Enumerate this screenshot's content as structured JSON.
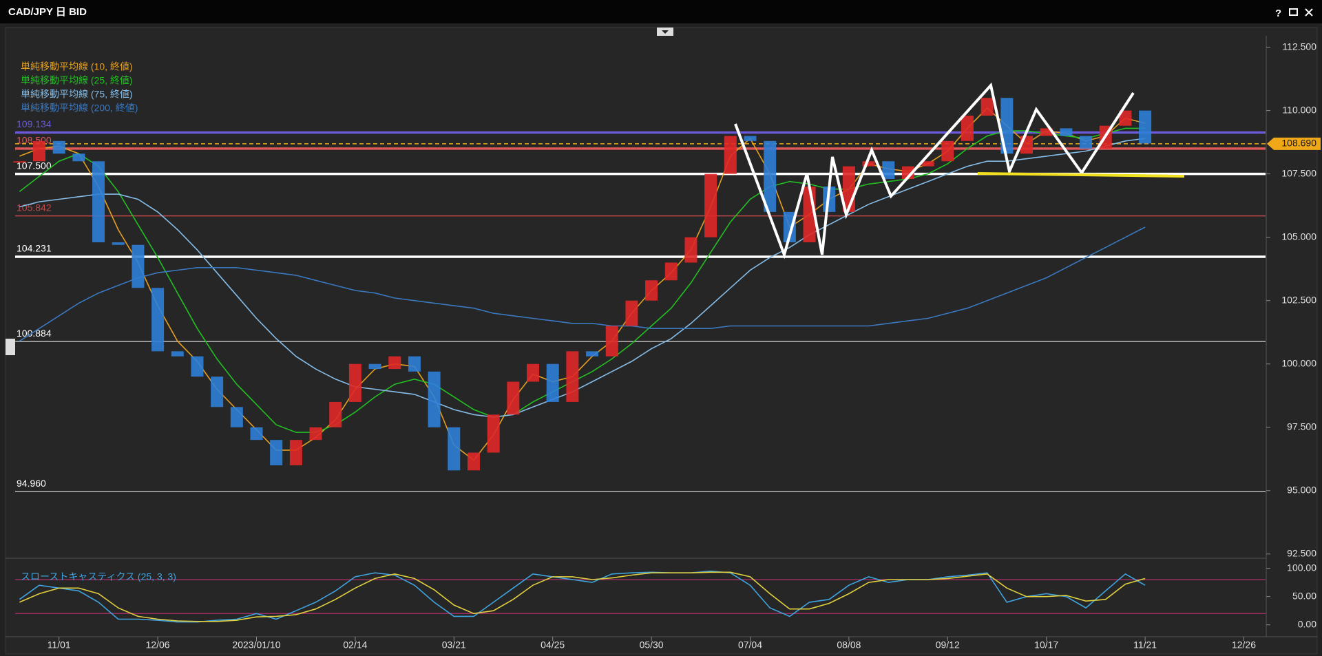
{
  "window": {
    "title": "CAD/JPY 日 BID"
  },
  "chart_data": [
    {
      "type": "candlestick",
      "categories": [
        null,
        null,
        "11/01",
        null,
        null,
        null,
        null,
        "12/06",
        null,
        null,
        null,
        null,
        "2023/01/10",
        null,
        null,
        null,
        null,
        "02/14",
        null,
        null,
        null,
        null,
        "03/21",
        null,
        null,
        null,
        null,
        "04/25",
        null,
        null,
        null,
        null,
        "05/30",
        null,
        null,
        null,
        null,
        "07/04",
        null,
        null,
        null,
        null,
        "08/08",
        null,
        null,
        null,
        null,
        "09/12",
        null,
        null,
        null,
        null,
        "10/17",
        null,
        null,
        null,
        null,
        "11/21",
        null,
        null,
        null,
        null,
        "12/26"
      ],
      "values": [
        108.0,
        108.8,
        108.3,
        108.0,
        104.8,
        104.7,
        103.0,
        100.5,
        100.3,
        99.5,
        98.3,
        97.5,
        97.0,
        96.0,
        97.0,
        97.5,
        98.5,
        100.0,
        99.8,
        100.3,
        99.7,
        97.5,
        95.8,
        96.5,
        98.0,
        99.3,
        100.0,
        98.5,
        100.5,
        100.3,
        101.5,
        102.5,
        103.3,
        104.0,
        105.0,
        107.5,
        109.0,
        108.8,
        106.0,
        104.8,
        107.0,
        106.0,
        107.8,
        108.0,
        107.3,
        107.8,
        108.0,
        108.8,
        109.8,
        110.5,
        108.3,
        109.0,
        109.3,
        109.0,
        108.5,
        109.4,
        110.0,
        108.7,
        null,
        null,
        null,
        null,
        null
      ],
      "up_color": "#e02828",
      "down_color": "#2f7fd8",
      "series": [
        {
          "name": "単純移動平均線 (10, 終値)",
          "color": "#e6a020",
          "values": [
            108.2,
            108.5,
            108.6,
            108.3,
            107.0,
            105.3,
            104.0,
            102.3,
            100.9,
            100.1,
            99.0,
            98.2,
            97.4,
            96.6,
            96.6,
            97.1,
            97.8,
            99.0,
            99.8,
            100.0,
            99.9,
            98.7,
            96.8,
            96.2,
            97.2,
            98.6,
            99.6,
            99.3,
            99.5,
            100.3,
            100.9,
            102.0,
            102.9,
            103.6,
            104.5,
            106.2,
            108.2,
            108.9,
            107.5,
            105.4,
            105.9,
            106.5,
            106.9,
            107.9,
            107.7,
            107.6,
            107.9,
            108.4,
            109.3,
            110.1,
            109.4,
            108.7,
            109.2,
            109.1,
            108.8,
            109.0,
            109.7,
            109.5,
            null,
            null,
            null,
            null,
            null
          ]
        },
        {
          "name": "単純移動平均線 (25, 終値)",
          "color": "#22c022",
          "values": [
            106.8,
            107.4,
            108.0,
            108.3,
            107.8,
            106.8,
            105.5,
            104.2,
            102.8,
            101.4,
            100.2,
            99.2,
            98.4,
            97.6,
            97.3,
            97.3,
            97.6,
            98.1,
            98.7,
            99.2,
            99.4,
            99.2,
            98.7,
            98.2,
            97.9,
            98.0,
            98.5,
            98.9,
            99.3,
            99.7,
            100.2,
            100.8,
            101.5,
            102.2,
            103.2,
            104.4,
            105.6,
            106.5,
            107.0,
            107.2,
            107.1,
            106.9,
            106.9,
            107.1,
            107.2,
            107.3,
            107.5,
            107.9,
            108.5,
            109.0,
            109.2,
            109.2,
            109.1,
            109.0,
            108.9,
            109.1,
            109.3,
            109.3,
            null,
            null,
            null,
            null,
            null
          ]
        },
        {
          "name": "単純移動平均線 (75, 終値)",
          "color": "#86bde8",
          "values": [
            106.2,
            106.4,
            106.5,
            106.6,
            106.7,
            106.7,
            106.5,
            106.0,
            105.3,
            104.5,
            103.6,
            102.7,
            101.8,
            101.0,
            100.3,
            99.8,
            99.4,
            99.1,
            99.0,
            98.9,
            98.8,
            98.5,
            98.2,
            98.0,
            97.9,
            98.0,
            98.3,
            98.6,
            98.9,
            99.3,
            99.7,
            100.1,
            100.6,
            101.0,
            101.6,
            102.3,
            103.0,
            103.7,
            104.2,
            104.6,
            105.1,
            105.5,
            105.9,
            106.3,
            106.6,
            106.9,
            107.2,
            107.5,
            107.8,
            108.0,
            108.0,
            108.1,
            108.2,
            108.3,
            108.4,
            108.6,
            108.8,
            108.9,
            null,
            null,
            null,
            null,
            null
          ]
        },
        {
          "name": "単純移動平均線 (200, 終値)",
          "color": "#3a78c0",
          "values": [
            100.9,
            101.4,
            101.9,
            102.4,
            102.8,
            103.1,
            103.4,
            103.6,
            103.7,
            103.8,
            103.8,
            103.8,
            103.7,
            103.6,
            103.5,
            103.3,
            103.1,
            102.9,
            102.8,
            102.6,
            102.5,
            102.4,
            102.3,
            102.2,
            102.0,
            101.9,
            101.8,
            101.7,
            101.6,
            101.6,
            101.5,
            101.5,
            101.4,
            101.4,
            101.4,
            101.4,
            101.5,
            101.5,
            101.5,
            101.5,
            101.5,
            101.5,
            101.5,
            101.5,
            101.6,
            101.7,
            101.8,
            102.0,
            102.2,
            102.5,
            102.8,
            103.1,
            103.4,
            103.8,
            104.2,
            104.6,
            105.0,
            105.4,
            null,
            null,
            null,
            null,
            null
          ]
        }
      ],
      "ylim": [
        92.5,
        112.5
      ],
      "yticks": [
        {
          "value": 112.5,
          "label": "112.500"
        },
        {
          "value": 110,
          "label": "110.000"
        },
        {
          "value": 107.5,
          "label": "107.500"
        },
        {
          "value": 105,
          "label": "105.000"
        },
        {
          "value": 102.5,
          "label": "102.500"
        },
        {
          "value": 100,
          "label": "100.000"
        },
        {
          "value": 97.5,
          "label": "97.500"
        },
        {
          "value": 95,
          "label": "95.000"
        },
        {
          "value": 92.5,
          "label": "92.500"
        }
      ],
      "levels": [
        {
          "value": 109.134,
          "label": "109.134",
          "color": "#6a5ad8",
          "weight": "bold"
        },
        {
          "value": 108.5,
          "label": "108.500",
          "color": "#e05858",
          "weight": "bold"
        },
        {
          "value": 107.5,
          "label": "107.500",
          "color": "#ffffff",
          "weight": "bold"
        },
        {
          "value": 105.842,
          "label": "105.842",
          "color": "#c04848",
          "weight": "normal"
        },
        {
          "value": 104.231,
          "label": "104.231",
          "color": "#ffffff",
          "weight": "bold"
        },
        {
          "value": 100.884,
          "label": "100.884",
          "color": "#b8b8b8",
          "weight": "normal"
        },
        {
          "value": 94.96,
          "label": "94.960",
          "color": "#b8b8b8",
          "weight": "normal"
        }
      ],
      "current": {
        "value": 108.69,
        "label": "108.690",
        "color": "#f0a818"
      }
    },
    {
      "type": "line",
      "title": "スローストキャスティクス (25, 3, 3)",
      "series": [
        {
          "color": "#3fa3e0",
          "values": [
            45,
            70,
            65,
            60,
            40,
            10,
            10,
            8,
            5,
            5,
            8,
            10,
            20,
            10,
            25,
            40,
            60,
            85,
            92,
            88,
            70,
            40,
            15,
            15,
            40,
            65,
            90,
            85,
            80,
            75,
            90,
            92,
            93,
            92,
            92,
            95,
            92,
            70,
            30,
            15,
            40,
            45,
            70,
            85,
            75,
            80,
            80,
            85,
            88,
            92,
            40,
            50,
            55,
            50,
            30,
            60,
            90,
            70,
            null,
            null,
            null,
            null,
            null
          ]
        },
        {
          "color": "#e0d040",
          "values": [
            40,
            55,
            65,
            65,
            55,
            30,
            15,
            10,
            7,
            6,
            6,
            8,
            14,
            15,
            18,
            28,
            45,
            65,
            82,
            90,
            82,
            62,
            35,
            20,
            25,
            45,
            70,
            85,
            85,
            80,
            83,
            88,
            92,
            92,
            92,
            93,
            93,
            85,
            55,
            28,
            28,
            38,
            55,
            75,
            80,
            80,
            80,
            82,
            86,
            90,
            65,
            50,
            50,
            52,
            42,
            45,
            72,
            82,
            null,
            null,
            null,
            null,
            null
          ]
        }
      ],
      "levels": [
        80,
        20
      ],
      "level_color": "#b0306a",
      "ylim": [
        0,
        100
      ],
      "yticks": [
        {
          "value": 100,
          "label": "100.00"
        },
        {
          "value": 50,
          "label": "50.00"
        },
        {
          "value": 0,
          "label": "0.00"
        }
      ]
    }
  ]
}
